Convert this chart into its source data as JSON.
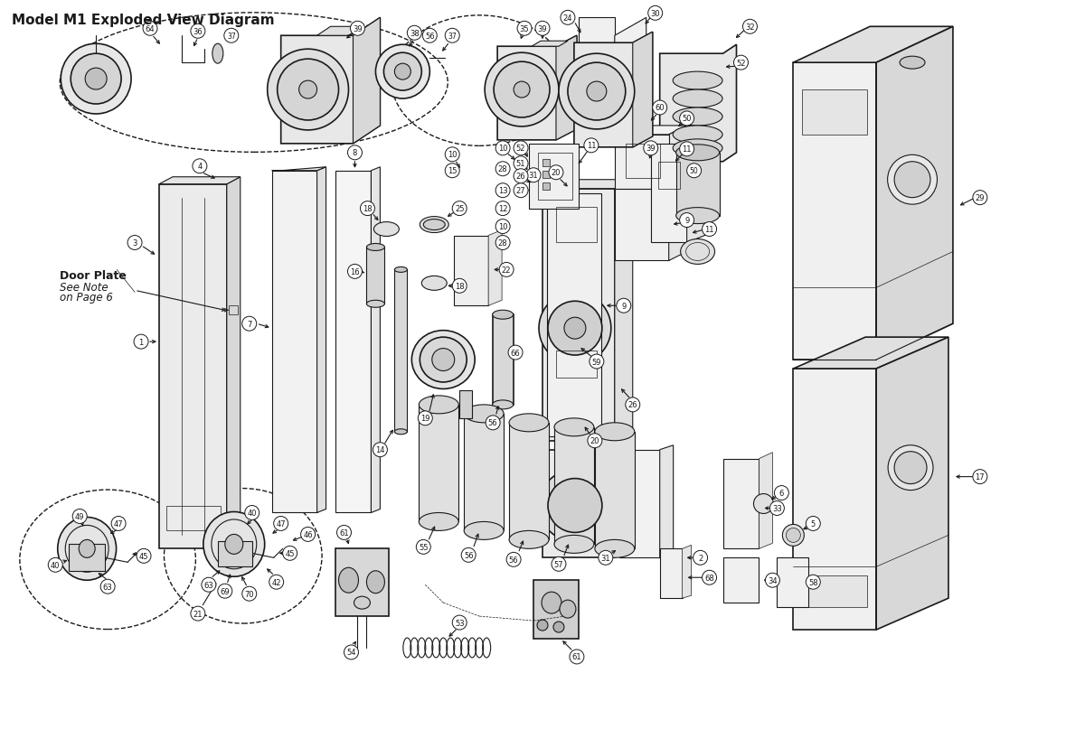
{
  "title": "Model M1 Exploded View Diagram",
  "title_fontsize": 11,
  "title_fontweight": "bold",
  "bg_color": "#ffffff",
  "line_color": "#1a1a1a",
  "fig_width": 12.0,
  "fig_height": 8.29,
  "dpi": 100,
  "note_line1": "Door Plate",
  "note_line2": "See Note",
  "note_line3": "on Page 6"
}
